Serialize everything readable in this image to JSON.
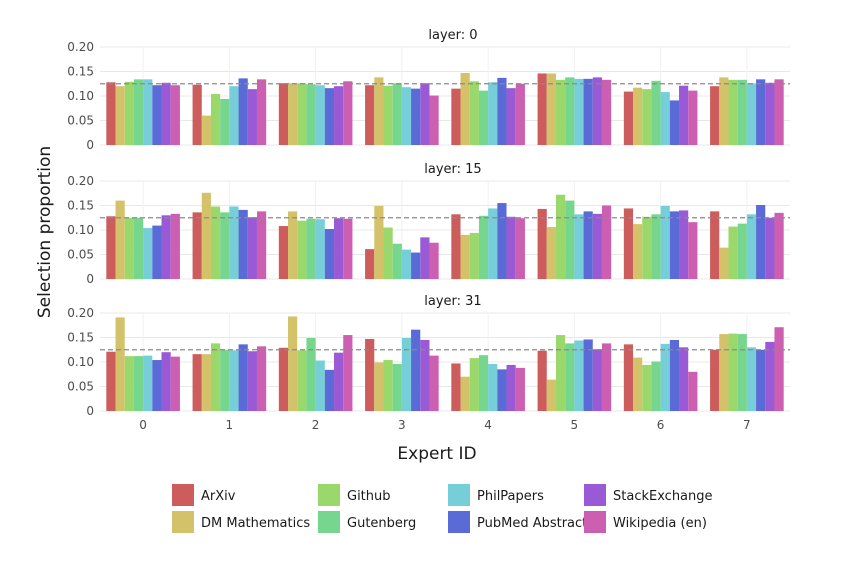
{
  "chart_data": {
    "type": "bar",
    "title": "",
    "xlabel": "Expert ID",
    "ylabel": "Selection proportion",
    "categories": [
      "0",
      "1",
      "2",
      "3",
      "4",
      "5",
      "6",
      "7"
    ],
    "ylim": [
      0,
      0.2
    ],
    "yticks": [
      "0",
      "0.05",
      "0.10",
      "0.15",
      "0.20"
    ],
    "reference_line": 0.125,
    "grid": true,
    "legend_position": "bottom",
    "series_names": [
      "ArXiv",
      "DM Mathematics",
      "Github",
      "Gutenberg",
      "PhilPapers",
      "PubMed Abstracts",
      "StackExchange",
      "Wikipedia (en)"
    ],
    "colors": [
      "#cd5c5c",
      "#d4c26a",
      "#9ad86b",
      "#77d68d",
      "#76cfd8",
      "#5a6ad6",
      "#9a5ad6",
      "#cc5fb2"
    ],
    "legend_order": [
      "ArXiv",
      "DM Mathematics",
      "Github",
      "Gutenberg",
      "PhilPapers",
      "PubMed Abstracts",
      "StackExchange",
      "Wikipedia (en)"
    ],
    "panels": [
      {
        "title": "layer: 0",
        "series": [
          {
            "name": "ArXiv",
            "values": [
              0.128,
              0.123,
              0.126,
              0.122,
              0.115,
              0.146,
              0.109,
              0.12
            ]
          },
          {
            "name": "DM Mathematics",
            "values": [
              0.12,
              0.06,
              0.126,
              0.138,
              0.147,
              0.146,
              0.117,
              0.138
            ]
          },
          {
            "name": "Github",
            "values": [
              0.129,
              0.104,
              0.126,
              0.121,
              0.13,
              0.133,
              0.114,
              0.133
            ]
          },
          {
            "name": "Gutenberg",
            "values": [
              0.134,
              0.094,
              0.124,
              0.126,
              0.111,
              0.138,
              0.131,
              0.133
            ]
          },
          {
            "name": "PhilPapers",
            "values": [
              0.134,
              0.12,
              0.122,
              0.118,
              0.128,
              0.135,
              0.108,
              0.126
            ]
          },
          {
            "name": "PubMed Abstracts",
            "values": [
              0.122,
              0.136,
              0.116,
              0.115,
              0.137,
              0.135,
              0.091,
              0.134
            ]
          },
          {
            "name": "StackExchange",
            "values": [
              0.127,
              0.114,
              0.12,
              0.126,
              0.116,
              0.138,
              0.121,
              0.127
            ]
          },
          {
            "name": "Wikipedia (en)",
            "values": [
              0.122,
              0.134,
              0.13,
              0.101,
              0.125,
              0.133,
              0.111,
              0.134
            ]
          }
        ]
      },
      {
        "title": "layer: 15",
        "series": [
          {
            "name": "ArXiv",
            "values": [
              0.128,
              0.136,
              0.108,
              0.061,
              0.132,
              0.143,
              0.144,
              0.138
            ]
          },
          {
            "name": "DM Mathematics",
            "values": [
              0.16,
              0.176,
              0.138,
              0.149,
              0.09,
              0.106,
              0.112,
              0.064
            ]
          },
          {
            "name": "Github",
            "values": [
              0.125,
              0.148,
              0.119,
              0.105,
              0.094,
              0.172,
              0.127,
              0.107
            ]
          },
          {
            "name": "Gutenberg",
            "values": [
              0.125,
              0.136,
              0.123,
              0.072,
              0.129,
              0.16,
              0.132,
              0.113
            ]
          },
          {
            "name": "PhilPapers",
            "values": [
              0.104,
              0.148,
              0.122,
              0.06,
              0.144,
              0.132,
              0.149,
              0.132
            ]
          },
          {
            "name": "PubMed Abstracts",
            "values": [
              0.109,
              0.141,
              0.102,
              0.054,
              0.155,
              0.138,
              0.138,
              0.151
            ]
          },
          {
            "name": "StackExchange",
            "values": [
              0.13,
              0.126,
              0.124,
              0.085,
              0.127,
              0.133,
              0.14,
              0.125
            ]
          },
          {
            "name": "Wikipedia (en)",
            "values": [
              0.133,
              0.138,
              0.123,
              0.074,
              0.124,
              0.15,
              0.116,
              0.135
            ]
          }
        ]
      },
      {
        "title": "layer: 31",
        "series": [
          {
            "name": "ArXiv",
            "values": [
              0.121,
              0.116,
              0.129,
              0.147,
              0.097,
              0.123,
              0.136,
              0.125
            ]
          },
          {
            "name": "DM Mathematics",
            "values": [
              0.191,
              0.116,
              0.193,
              0.099,
              0.07,
              0.064,
              0.109,
              0.157
            ]
          },
          {
            "name": "Github",
            "values": [
              0.112,
              0.138,
              0.124,
              0.104,
              0.108,
              0.155,
              0.094,
              0.158
            ]
          },
          {
            "name": "Gutenberg",
            "values": [
              0.112,
              0.125,
              0.149,
              0.096,
              0.114,
              0.138,
              0.101,
              0.157
            ]
          },
          {
            "name": "PhilPapers",
            "values": [
              0.113,
              0.124,
              0.103,
              0.149,
              0.096,
              0.144,
              0.137,
              0.13
            ]
          },
          {
            "name": "PubMed Abstracts",
            "values": [
              0.104,
              0.136,
              0.084,
              0.166,
              0.085,
              0.146,
              0.145,
              0.125
            ]
          },
          {
            "name": "StackExchange",
            "values": [
              0.12,
              0.122,
              0.119,
              0.145,
              0.094,
              0.126,
              0.13,
              0.141
            ]
          },
          {
            "name": "Wikipedia (en)",
            "values": [
              0.111,
              0.132,
              0.155,
              0.113,
              0.088,
              0.138,
              0.08,
              0.171
            ]
          }
        ]
      }
    ]
  }
}
